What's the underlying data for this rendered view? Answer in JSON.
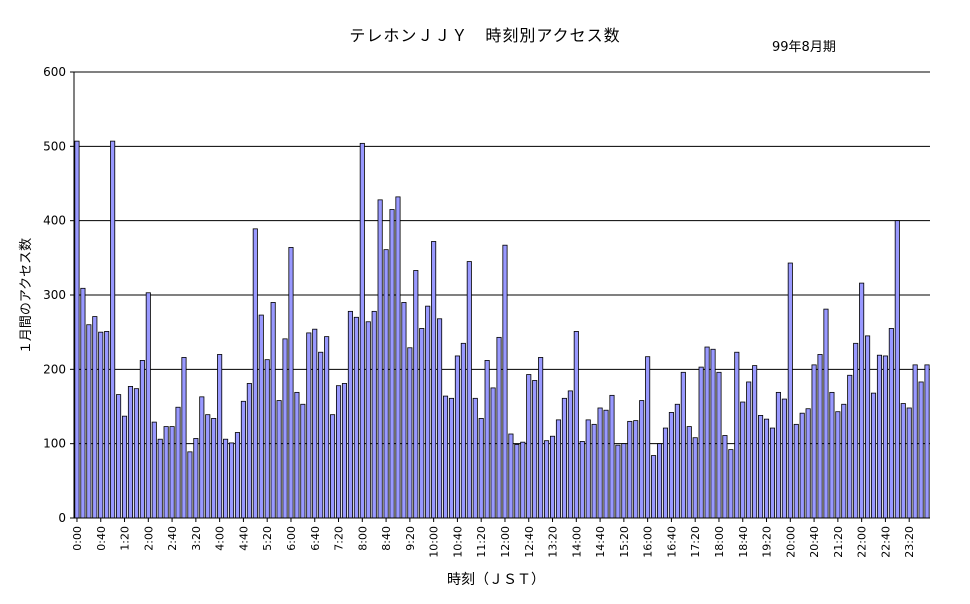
{
  "chart_data": {
    "type": "bar",
    "title": "テレホンＪＪＹ　時刻別アクセス数",
    "subtitle": "99年8月期",
    "xlabel": "時刻（ＪＳＴ）",
    "ylabel": "１月間のアクセス数",
    "ylim": [
      0,
      600
    ],
    "yticks": [
      0,
      100,
      200,
      300,
      400,
      500,
      600
    ],
    "grid": true,
    "bar_color": "#9999ff",
    "categories": [
      "0:00",
      "0:10",
      "0:20",
      "0:30",
      "0:40",
      "0:50",
      "1:00",
      "1:10",
      "1:20",
      "1:30",
      "1:40",
      "1:50",
      "2:00",
      "2:10",
      "2:20",
      "2:30",
      "2:40",
      "2:50",
      "3:00",
      "3:10",
      "3:20",
      "3:30",
      "3:40",
      "3:50",
      "4:00",
      "4:10",
      "4:20",
      "4:30",
      "4:40",
      "4:50",
      "5:00",
      "5:10",
      "5:20",
      "5:30",
      "5:40",
      "5:50",
      "6:00",
      "6:10",
      "6:20",
      "6:30",
      "6:40",
      "6:50",
      "7:00",
      "7:10",
      "7:20",
      "7:30",
      "7:40",
      "7:50",
      "8:00",
      "8:10",
      "8:20",
      "8:30",
      "8:40",
      "8:50",
      "9:00",
      "9:10",
      "9:20",
      "9:30",
      "9:40",
      "9:50",
      "10:00",
      "10:10",
      "10:20",
      "10:30",
      "10:40",
      "10:50",
      "11:00",
      "11:10",
      "11:20",
      "11:30",
      "11:40",
      "11:50",
      "12:00",
      "12:10",
      "12:20",
      "12:30",
      "12:40",
      "12:50",
      "13:00",
      "13:10",
      "13:20",
      "13:30",
      "13:40",
      "13:50",
      "14:00",
      "14:10",
      "14:20",
      "14:30",
      "14:40",
      "14:50",
      "15:00",
      "15:10",
      "15:20",
      "15:30",
      "15:40",
      "15:50",
      "16:00",
      "16:10",
      "16:20",
      "16:30",
      "16:40",
      "16:50",
      "17:00",
      "17:10",
      "17:20",
      "17:30",
      "17:40",
      "17:50",
      "18:00",
      "18:10",
      "18:20",
      "18:30",
      "18:40",
      "18:50",
      "19:00",
      "19:10",
      "19:20",
      "19:30",
      "19:40",
      "19:50",
      "20:00",
      "20:10",
      "20:20",
      "20:30",
      "20:40",
      "20:50",
      "21:00",
      "21:10",
      "21:20",
      "21:30",
      "21:40",
      "21:50",
      "22:00",
      "22:10",
      "22:20",
      "22:30",
      "22:40",
      "22:50",
      "23:00",
      "23:10",
      "23:20",
      "23:30",
      "23:40",
      "23:50"
    ],
    "xtick_labels": [
      "0:00",
      "0:40",
      "1:20",
      "2:00",
      "2:40",
      "3:20",
      "4:00",
      "4:40",
      "5:20",
      "6:00",
      "6:40",
      "7:20",
      "8:00",
      "8:40",
      "9:20",
      "10:00",
      "10:40",
      "11:20",
      "12:00",
      "12:40",
      "13:20",
      "14:00",
      "14:40",
      "15:20",
      "16:00",
      "16:40",
      "17:20",
      "18:00",
      "18:40",
      "19:20",
      "20:00",
      "20:40",
      "21:20",
      "22:00",
      "22:40",
      "23:20"
    ],
    "values": [
      507,
      309,
      260,
      271,
      250,
      251,
      507,
      166,
      137,
      177,
      174,
      212,
      303,
      129,
      106,
      123,
      123,
      149,
      216,
      89,
      107,
      163,
      139,
      134,
      220,
      106,
      101,
      115,
      157,
      181,
      389,
      273,
      213,
      290,
      158,
      241,
      364,
      169,
      153,
      249,
      254,
      223,
      244,
      139,
      178,
      181,
      278,
      270,
      504,
      264,
      278,
      428,
      361,
      415,
      432,
      290,
      229,
      333,
      255,
      285,
      372,
      268,
      164,
      161,
      218,
      235,
      345,
      161,
      134,
      212,
      175,
      243,
      367,
      113,
      99,
      102,
      193,
      185,
      216,
      104,
      110,
      132,
      161,
      171,
      251,
      103,
      132,
      126,
      148,
      145,
      165,
      98,
      100,
      130,
      131,
      158,
      217,
      84,
      100,
      121,
      142,
      153,
      196,
      123,
      108,
      203,
      230,
      227,
      196,
      111,
      92,
      223,
      156,
      183,
      205,
      138,
      133,
      121,
      169,
      160,
      343,
      126,
      141,
      147,
      206,
      220,
      281,
      169,
      143,
      153,
      192,
      235,
      316,
      245,
      168,
      219,
      218,
      255,
      400,
      154,
      148,
      206,
      183,
      206
    ]
  }
}
